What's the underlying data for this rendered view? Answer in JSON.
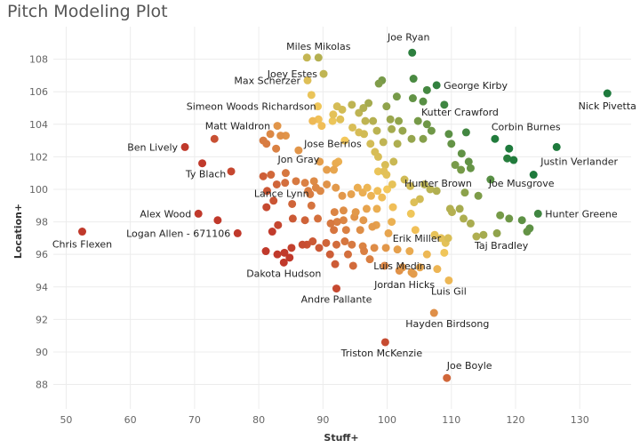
{
  "chart_data": {
    "type": "scatter",
    "title": "Pitch Modeling Plot",
    "xlabel": "Stuff+",
    "ylabel": "Location+",
    "xlim": [
      48,
      138
    ],
    "ylim": [
      86.5,
      110
    ],
    "xticks": [
      50,
      60,
      70,
      80,
      90,
      100,
      110,
      120,
      130
    ],
    "yticks": [
      88,
      90,
      92,
      94,
      96,
      98,
      100,
      102,
      104,
      106,
      108
    ],
    "grid": true,
    "color_scale": {
      "low": "#c0392b",
      "mid": "#f3c75a",
      "high": "#1e7a3c",
      "metric": "combined Stuff+ and Location+"
    },
    "labeled_points": [
      {
        "name": "Miles Mikolas",
        "x": 89.3,
        "y": 108.1
      },
      {
        "name": "Joey Estes",
        "x": 90.1,
        "y": 107.1
      },
      {
        "name": "Joe Ryan",
        "x": 103.9,
        "y": 108.4
      },
      {
        "name": "Max Scherzer",
        "x": 87.6,
        "y": 106.7
      },
      {
        "name": "George Kirby",
        "x": 107.7,
        "y": 106.4
      },
      {
        "name": "Nick Pivetta",
        "x": 134.3,
        "y": 105.9
      },
      {
        "name": "Simeon Woods Richardson",
        "x": 89.2,
        "y": 105.1
      },
      {
        "name": "Kutter Crawford",
        "x": 105.6,
        "y": 105.4
      },
      {
        "name": "Matt Waldron",
        "x": 82.9,
        "y": 103.9
      },
      {
        "name": "Corbin Burnes",
        "x": 116.8,
        "y": 103.1
      },
      {
        "name": "Ben Lively",
        "x": 68.5,
        "y": 102.6
      },
      {
        "name": "Jose Berrios",
        "x": 97.4,
        "y": 102.8
      },
      {
        "name": "Jon Gray",
        "x": 86.2,
        "y": 102.4
      },
      {
        "name": "Justin Verlander",
        "x": 126.4,
        "y": 102.6
      },
      {
        "name": "Ty Blach",
        "x": 71.2,
        "y": 101.6
      },
      {
        "name": "Hunter Brown",
        "x": 102.7,
        "y": 100.6
      },
      {
        "name": "Lance Lynn",
        "x": 84.1,
        "y": 100.4
      },
      {
        "name": "Joe Musgrove",
        "x": 116.1,
        "y": 100.6
      },
      {
        "name": "Alex Wood",
        "x": 70.6,
        "y": 98.5
      },
      {
        "name": "Hunter Greene",
        "x": 123.5,
        "y": 98.5
      },
      {
        "name": "Logan Allen - 671106",
        "x": 76.7,
        "y": 97.3
      },
      {
        "name": "Chris Flexen",
        "x": 52.5,
        "y": 97.4
      },
      {
        "name": "Erik Miller",
        "x": 109.5,
        "y": 97.0
      },
      {
        "name": "Taj Bradley",
        "x": 113.9,
        "y": 97.1
      },
      {
        "name": "Dakota Hudson",
        "x": 83.9,
        "y": 95.5
      },
      {
        "name": "Luis Medina",
        "x": 102.4,
        "y": 95.2
      },
      {
        "name": "Jordan Hicks",
        "x": 104.1,
        "y": 94.8
      },
      {
        "name": "Luis Gil",
        "x": 109.6,
        "y": 94.4
      },
      {
        "name": "Andre Pallante",
        "x": 92.1,
        "y": 93.9
      },
      {
        "name": "Hayden Birdsong",
        "x": 107.3,
        "y": 92.4
      },
      {
        "name": "Triston McKenzie",
        "x": 99.7,
        "y": 90.6
      },
      {
        "name": "Joe Boyle",
        "x": 109.3,
        "y": 88.4
      }
    ],
    "points": [
      [
        87.5,
        108.1
      ],
      [
        104.1,
        106.8
      ],
      [
        106.2,
        106.1
      ],
      [
        108.9,
        105.2
      ],
      [
        104.0,
        105.6
      ],
      [
        101.5,
        105.7
      ],
      [
        99.2,
        106.7
      ],
      [
        98.7,
        106.5
      ],
      [
        88.2,
        105.8
      ],
      [
        92.2,
        105.1
      ],
      [
        94.5,
        105.2
      ],
      [
        95.6,
        104.7
      ],
      [
        96.3,
        105.0
      ],
      [
        97.1,
        105.3
      ],
      [
        99.9,
        105.1
      ],
      [
        100.5,
        104.3
      ],
      [
        101.8,
        104.2
      ],
      [
        102.4,
        103.6
      ],
      [
        104.8,
        104.2
      ],
      [
        106.2,
        104.0
      ],
      [
        106.9,
        103.6
      ],
      [
        109.6,
        103.4
      ],
      [
        112.3,
        103.5
      ],
      [
        93.0,
        104.9
      ],
      [
        91.5,
        104.2
      ],
      [
        89.3,
        104.3
      ],
      [
        88.4,
        104.2
      ],
      [
        89.8,
        103.9
      ],
      [
        96.6,
        104.2
      ],
      [
        97.8,
        104.2
      ],
      [
        100.7,
        103.7
      ],
      [
        98.4,
        103.6
      ],
      [
        95.6,
        103.5
      ],
      [
        94.6,
        103.8
      ],
      [
        92.7,
        104.3
      ],
      [
        91.6,
        104.6
      ],
      [
        81.8,
        103.4
      ],
      [
        84.2,
        103.3
      ],
      [
        83.4,
        103.3
      ],
      [
        82.7,
        102.5
      ],
      [
        81.2,
        102.8
      ],
      [
        73.1,
        103.1
      ],
      [
        80.7,
        103.0
      ],
      [
        93.4,
        103.0
      ],
      [
        96.4,
        103.4
      ],
      [
        99.4,
        102.9
      ],
      [
        101.6,
        102.8
      ],
      [
        103.8,
        103.1
      ],
      [
        105.6,
        103.1
      ],
      [
        110.0,
        102.8
      ],
      [
        111.6,
        102.2
      ],
      [
        112.7,
        101.7
      ],
      [
        113.0,
        101.3
      ],
      [
        110.6,
        101.5
      ],
      [
        111.5,
        101.2
      ],
      [
        119.0,
        102.5
      ],
      [
        118.7,
        101.9
      ],
      [
        119.7,
        101.8
      ],
      [
        122.8,
        100.9
      ],
      [
        98.1,
        102.3
      ],
      [
        98.6,
        102.0
      ],
      [
        99.7,
        101.5
      ],
      [
        101.0,
        101.7
      ],
      [
        92.4,
        101.7
      ],
      [
        92.0,
        101.6
      ],
      [
        91.7,
        101.2
      ],
      [
        90.6,
        101.2
      ],
      [
        89.5,
        101.7
      ],
      [
        84.2,
        101.0
      ],
      [
        81.9,
        100.9
      ],
      [
        80.7,
        100.8
      ],
      [
        75.7,
        101.1
      ],
      [
        81.3,
        99.9
      ],
      [
        82.8,
        100.3
      ],
      [
        85.8,
        100.5
      ],
      [
        87.2,
        100.4
      ],
      [
        88.6,
        100.5
      ],
      [
        88.9,
        100.1
      ],
      [
        87.7,
        99.9
      ],
      [
        88.0,
        99.7
      ],
      [
        89.6,
        99.9
      ],
      [
        90.6,
        100.3
      ],
      [
        92.0,
        100.1
      ],
      [
        93.0,
        99.6
      ],
      [
        94.4,
        99.7
      ],
      [
        95.4,
        100.1
      ],
      [
        96.2,
        99.8
      ],
      [
        96.9,
        100.1
      ],
      [
        97.5,
        99.6
      ],
      [
        98.5,
        99.9
      ],
      [
        99.2,
        99.5
      ],
      [
        100.0,
        100.0
      ],
      [
        100.8,
        100.3
      ],
      [
        98.6,
        101.1
      ],
      [
        99.5,
        101.1
      ],
      [
        99.9,
        100.9
      ],
      [
        103.6,
        100.2
      ],
      [
        105.8,
        100.3
      ],
      [
        106.7,
        100.0
      ],
      [
        107.7,
        99.9
      ],
      [
        105.1,
        99.4
      ],
      [
        104.2,
        99.2
      ],
      [
        114.2,
        99.6
      ],
      [
        112.1,
        99.8
      ],
      [
        109.8,
        98.8
      ],
      [
        117.6,
        98.4
      ],
      [
        119.0,
        98.2
      ],
      [
        121.0,
        98.1
      ],
      [
        122.2,
        97.6
      ],
      [
        121.8,
        97.4
      ],
      [
        117.1,
        97.3
      ],
      [
        115.0,
        97.2
      ],
      [
        113.0,
        97.9
      ],
      [
        111.9,
        98.2
      ],
      [
        111.3,
        98.8
      ],
      [
        110.1,
        98.6
      ],
      [
        103.7,
        98.5
      ],
      [
        100.7,
        98.0
      ],
      [
        98.3,
        97.8
      ],
      [
        96.3,
        98.1
      ],
      [
        94.9,
        98.3
      ],
      [
        93.2,
        98.1
      ],
      [
        92.2,
        98.0
      ],
      [
        91.2,
        97.9
      ],
      [
        89.2,
        98.2
      ],
      [
        87.2,
        98.1
      ],
      [
        85.3,
        98.2
      ],
      [
        83.0,
        97.8
      ],
      [
        82.1,
        97.4
      ],
      [
        81.2,
        98.9
      ],
      [
        82.3,
        99.3
      ],
      [
        85.2,
        99.1
      ],
      [
        88.2,
        99.0
      ],
      [
        91.8,
        98.6
      ],
      [
        93.2,
        98.7
      ],
      [
        95.1,
        98.6
      ],
      [
        96.8,
        98.8
      ],
      [
        98.4,
        98.8
      ],
      [
        100.9,
        98.9
      ],
      [
        73.6,
        98.1
      ],
      [
        91.7,
        97.5
      ],
      [
        93.6,
        97.5
      ],
      [
        95.8,
        97.5
      ],
      [
        97.7,
        97.7
      ],
      [
        100.2,
        97.3
      ],
      [
        104.4,
        97.5
      ],
      [
        107.4,
        97.2
      ],
      [
        108.4,
        97.0
      ],
      [
        88.4,
        96.8
      ],
      [
        90.5,
        96.7
      ],
      [
        92.1,
        96.6
      ],
      [
        93.4,
        96.8
      ],
      [
        94.5,
        96.6
      ],
      [
        96.2,
        96.5
      ],
      [
        98.0,
        96.4
      ],
      [
        99.8,
        96.4
      ],
      [
        101.6,
        96.3
      ],
      [
        103.5,
        96.2
      ],
      [
        106.2,
        96.0
      ],
      [
        108.9,
        96.1
      ],
      [
        85.1,
        96.4
      ],
      [
        84.0,
        96.1
      ],
      [
        84.8,
        95.8
      ],
      [
        87.5,
        96.6
      ],
      [
        91.9,
        95.4
      ],
      [
        94.7,
        95.3
      ],
      [
        97.3,
        95.7
      ],
      [
        99.6,
        95.3
      ],
      [
        101.9,
        95.0
      ],
      [
        105.1,
        95.2
      ],
      [
        107.8,
        95.1
      ],
      [
        103.8,
        94.9
      ],
      [
        93.9,
        96.0
      ],
      [
        91.1,
        96.0
      ],
      [
        89.4,
        96.4
      ],
      [
        86.8,
        96.6
      ],
      [
        82.9,
        96.0
      ],
      [
        81.1,
        96.2
      ],
      [
        96.4,
        96.2
      ],
      [
        109.1,
        96.7
      ]
    ]
  }
}
